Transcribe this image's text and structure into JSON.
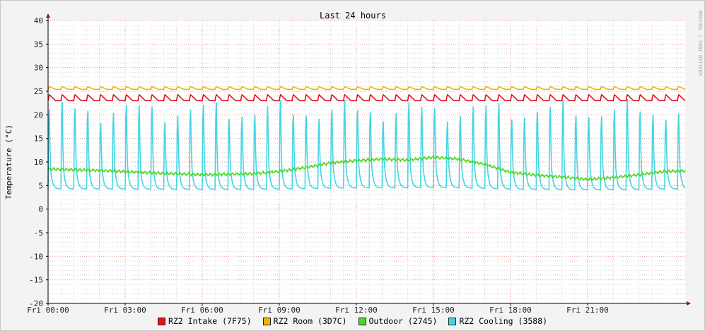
{
  "chart_data": {
    "type": "line",
    "title": "Last 24 hours",
    "ylabel": "Temperature (°C)",
    "watermark": "RRDTOOL / TOBI OETIKER",
    "ylim": [
      -20,
      40
    ],
    "yticks": [
      40,
      35,
      30,
      25,
      20,
      15,
      10,
      5,
      0,
      -5,
      -10,
      -15,
      -20
    ],
    "xlim_hours": [
      0,
      24.8
    ],
    "xticks": [
      {
        "label": "Fri 00:00",
        "hour": 0
      },
      {
        "label": "Fri 03:00",
        "hour": 3
      },
      {
        "label": "Fri 06:00",
        "hour": 6
      },
      {
        "label": "Fri 09:00",
        "hour": 9
      },
      {
        "label": "Fri 12:00",
        "hour": 12
      },
      {
        "label": "Fri 15:00",
        "hour": 15
      },
      {
        "label": "Fri 18:00",
        "hour": 18
      },
      {
        "label": "Fri 21:00",
        "hour": 21
      }
    ],
    "grid": true,
    "legend_position": "bottom",
    "cooling_cycle_hours": 0.5,
    "series": [
      {
        "name": "RZ2 Intake (7F75)",
        "color": "#e0141e",
        "base": 23.0,
        "peak": 24.3
      },
      {
        "name": "RZ2 Room (3D7C)",
        "color": "#e8b800",
        "base": 25.4,
        "peak": 26.0
      },
      {
        "name": "Outdoor (2745)",
        "color": "#4cd826",
        "hours": [
          0,
          2,
          4,
          6,
          8,
          9,
          10,
          11,
          12,
          13,
          14,
          15,
          16,
          17,
          18,
          19,
          20,
          21,
          22,
          23,
          24,
          24.8
        ],
        "values": [
          8.5,
          8.2,
          7.7,
          7.3,
          7.5,
          8.0,
          8.8,
          9.8,
          10.3,
          10.6,
          10.4,
          11.0,
          10.6,
          9.5,
          7.8,
          7.2,
          6.8,
          6.3,
          6.7,
          7.3,
          8.0,
          8.1
        ]
      },
      {
        "name": "RZ2 Cooling (3588)",
        "color": "#44d6e4",
        "min": 4.2,
        "peak": 20.8
      }
    ]
  },
  "legend": [
    {
      "label": "RZ2 Intake (7F75)",
      "color": "#e0141e"
    },
    {
      "label": "RZ2 Room (3D7C)",
      "color": "#e8b800"
    },
    {
      "label": "Outdoor (2745)",
      "color": "#4cd826"
    },
    {
      "label": "RZ2 Cooling (3588)",
      "color": "#44d6e4"
    }
  ]
}
